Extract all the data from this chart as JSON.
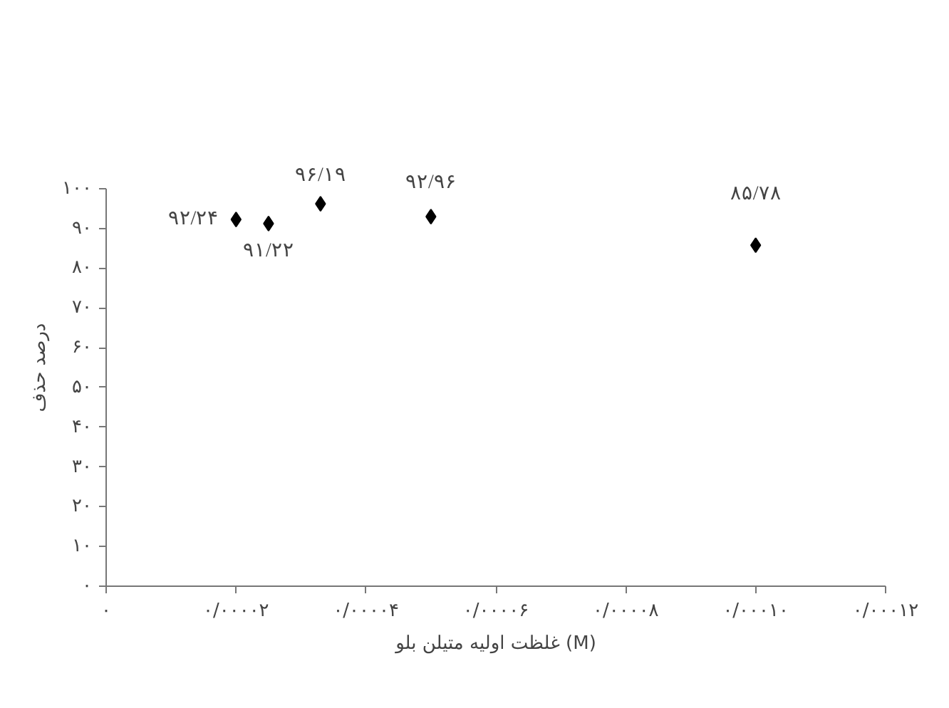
{
  "chart_data": {
    "type": "scatter",
    "xlabel": "غلظت اولیه متیلن بلو (M)",
    "ylabel": "درصد حذف",
    "x": [
      2e-05,
      2.5e-05,
      3.3e-05,
      5e-05,
      0.0001
    ],
    "values": [
      92.24,
      91.22,
      96.19,
      92.96,
      85.78
    ],
    "value_labels": [
      "۹۲/۲۴",
      "۹۱/۲۲",
      "۹۶/۱۹",
      "۹۲/۹۶",
      "۸۵/۷۸"
    ],
    "color": "#000000",
    "marker": "diamond",
    "grid": false,
    "xlim": [
      0,
      0.00012
    ],
    "xticks": [
      {
        "value": 0,
        "label": "۰"
      },
      {
        "value": 2e-05,
        "label": "۰/۰۰۰۰۲"
      },
      {
        "value": 4e-05,
        "label": "۰/۰۰۰۰۴"
      },
      {
        "value": 6e-05,
        "label": "۰/۰۰۰۰۶"
      },
      {
        "value": 8e-05,
        "label": "۰/۰۰۰۰۸"
      },
      {
        "value": 0.0001,
        "label": "۰/۰۰۰۱۰"
      },
      {
        "value": 0.00012,
        "label": "۰/۰۰۰۱۲"
      }
    ],
    "ylim": [
      0,
      100
    ],
    "yticks": [
      {
        "value": 0,
        "label": "۰"
      },
      {
        "value": 10,
        "label": "۱۰"
      },
      {
        "value": 20,
        "label": "۲۰"
      },
      {
        "value": 30,
        "label": "۳۰"
      },
      {
        "value": 40,
        "label": "۴۰"
      },
      {
        "value": 50,
        "label": "۵۰"
      },
      {
        "value": 60,
        "label": "۶۰"
      },
      {
        "value": 70,
        "label": "۷۰"
      },
      {
        "value": 80,
        "label": "۸۰"
      },
      {
        "value": 90,
        "label": "۹۰"
      },
      {
        "value": 100,
        "label": "۱۰۰"
      }
    ]
  }
}
